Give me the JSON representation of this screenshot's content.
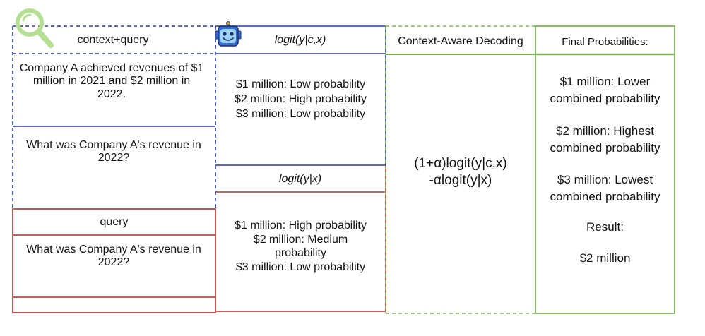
{
  "context_query": {
    "header": "context+query",
    "context_text": "Company A achieved revenues of $1 million in 2021 and $2 million in 2022.",
    "question_text": "What was Company A's revenue in 2022?"
  },
  "query": {
    "header": "query",
    "question_text": "What was Company A's revenue in 2022?"
  },
  "logit_context": {
    "header": "logit(y|c,x)",
    "lines": [
      "$1 million: Low probability",
      "$2 million: High probability",
      "$3 million: Low probability"
    ]
  },
  "logit_plain": {
    "header": "logit(y|x)",
    "lines": [
      "$1 million: High probability",
      "$2 million: Medium probability",
      "$3 million: Low probability"
    ]
  },
  "decoding": {
    "header": "Context-Aware Decoding",
    "formula_line1": "(1+α)logit(y|c,x)",
    "formula_line2": "-αlogit(y|x)"
  },
  "final": {
    "header": "Final Probabilities:",
    "item1": "$1 million: Lower combined probability",
    "item2": "$2 million: Highest combined probability",
    "item3": "$3 million: Lowest combined probability",
    "result_label": "Result:",
    "result_value": "$2 million"
  },
  "colors": {
    "context_blue": "#2b3a9e",
    "query_red": "#a8322e",
    "decoding_green": "#7fb25a",
    "icon_green": "#b5df93",
    "robot_blue": "#2e6fd8"
  },
  "icons": [
    "magnifier-icon",
    "robot-icon"
  ]
}
